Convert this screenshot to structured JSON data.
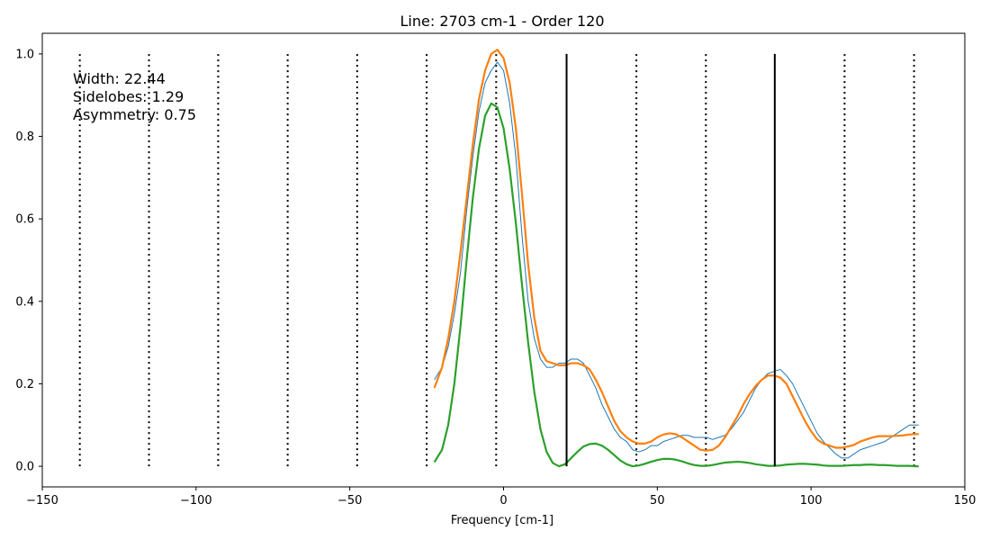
{
  "chart_data": {
    "type": "line",
    "title": "Line: 2703 cm-1 - Order 120",
    "xlabel": "Frequency [cm-1]",
    "ylabel": "",
    "xlim": [
      -150,
      150
    ],
    "ylim": [
      -0.05,
      1.05
    ],
    "xticks": [
      -150,
      -100,
      -50,
      0,
      50,
      100,
      150
    ],
    "xtick_labels": [
      "−150",
      "−100",
      "−50",
      "0",
      "50",
      "100",
      "150"
    ],
    "yticks": [
      0.0,
      0.2,
      0.4,
      0.6,
      0.8,
      1.0
    ],
    "ytick_labels": [
      "0.0",
      "0.2",
      "0.4",
      "0.6",
      "0.8",
      "1.0"
    ],
    "grid": false,
    "annotations": [
      "Width: 22.44",
      "Sidelobes: 1.29",
      "Asymmetry: 0.75"
    ],
    "dotted_vlines": {
      "x": [
        -137.8,
        -115.3,
        -92.8,
        -70.2,
        -47.6,
        -25.0,
        -2.4,
        43.2,
        65.8,
        110.9,
        133.5
      ],
      "ymin": 0.0,
      "ymax": 1.0,
      "color": "#000000"
    },
    "solid_vlines": {
      "x": [
        20.5,
        88.2
      ],
      "ymin": 0.0,
      "ymax": 1.0,
      "color": "#000000"
    },
    "series": [
      {
        "color": "#1f77b4",
        "x": [
          -22.5,
          -20,
          -18,
          -16,
          -14,
          -12,
          -10,
          -8,
          -6,
          -4,
          -2,
          0,
          2,
          4,
          6,
          8,
          10,
          12,
          14,
          16,
          18,
          20,
          22,
          24,
          26,
          28,
          30,
          32,
          34,
          36,
          38,
          40,
          42,
          44,
          46,
          48,
          50,
          52,
          54,
          56,
          58,
          60,
          62,
          64,
          66,
          68,
          70,
          72,
          74,
          76,
          78,
          80,
          82,
          84,
          86,
          88,
          90,
          92,
          94,
          96,
          98,
          100,
          102,
          104,
          106,
          108,
          110,
          112,
          114,
          116,
          118,
          120,
          122,
          124,
          126,
          128,
          130,
          132,
          134,
          135
        ],
        "y": [
          0.21,
          0.24,
          0.29,
          0.37,
          0.47,
          0.62,
          0.75,
          0.86,
          0.93,
          0.96,
          0.98,
          0.96,
          0.88,
          0.75,
          0.56,
          0.4,
          0.31,
          0.26,
          0.24,
          0.24,
          0.25,
          0.25,
          0.26,
          0.26,
          0.25,
          0.22,
          0.19,
          0.15,
          0.12,
          0.09,
          0.07,
          0.06,
          0.04,
          0.035,
          0.04,
          0.05,
          0.05,
          0.06,
          0.065,
          0.07,
          0.075,
          0.075,
          0.07,
          0.07,
          0.07,
          0.065,
          0.07,
          0.075,
          0.09,
          0.11,
          0.13,
          0.16,
          0.19,
          0.21,
          0.225,
          0.23,
          0.235,
          0.22,
          0.2,
          0.17,
          0.14,
          0.11,
          0.08,
          0.06,
          0.045,
          0.03,
          0.02,
          0.02,
          0.03,
          0.04,
          0.045,
          0.05,
          0.055,
          0.06,
          0.07,
          0.08,
          0.09,
          0.1,
          0.1,
          0.1
        ]
      },
      {
        "color": "#ff7f0e",
        "x": [
          -22.5,
          -20,
          -18,
          -16,
          -14,
          -12,
          -10,
          -8,
          -6,
          -4,
          -2,
          0,
          2,
          4,
          6,
          8,
          10,
          12,
          14,
          16,
          18,
          20,
          22,
          24,
          26,
          28,
          30,
          32,
          34,
          36,
          38,
          40,
          42,
          44,
          46,
          48,
          50,
          52,
          54,
          56,
          58,
          60,
          62,
          64,
          66,
          68,
          70,
          72,
          74,
          76,
          78,
          80,
          82,
          84,
          86,
          88,
          90,
          92,
          94,
          96,
          98,
          100,
          102,
          104,
          106,
          108,
          110,
          112,
          114,
          116,
          118,
          120,
          122,
          124,
          126,
          128,
          130,
          132,
          134,
          135
        ],
        "y": [
          0.19,
          0.24,
          0.31,
          0.4,
          0.52,
          0.65,
          0.78,
          0.89,
          0.96,
          1.0,
          1.01,
          0.99,
          0.93,
          0.82,
          0.66,
          0.49,
          0.36,
          0.28,
          0.255,
          0.25,
          0.245,
          0.245,
          0.25,
          0.25,
          0.245,
          0.235,
          0.21,
          0.18,
          0.145,
          0.11,
          0.085,
          0.07,
          0.06,
          0.055,
          0.055,
          0.06,
          0.07,
          0.077,
          0.08,
          0.078,
          0.07,
          0.06,
          0.05,
          0.04,
          0.038,
          0.04,
          0.05,
          0.07,
          0.095,
          0.12,
          0.15,
          0.175,
          0.195,
          0.21,
          0.22,
          0.22,
          0.215,
          0.2,
          0.17,
          0.14,
          0.11,
          0.085,
          0.065,
          0.055,
          0.05,
          0.045,
          0.045,
          0.048,
          0.052,
          0.06,
          0.065,
          0.07,
          0.073,
          0.073,
          0.073,
          0.074,
          0.075,
          0.077,
          0.078,
          0.078
        ]
      },
      {
        "color": "#2ca02c",
        "x": [
          -22.5,
          -20,
          -18,
          -16,
          -14,
          -12,
          -10,
          -8,
          -6,
          -4,
          -2,
          0,
          2,
          4,
          6,
          8,
          10,
          12,
          14,
          16,
          18,
          20,
          22,
          24,
          26,
          28,
          30,
          32,
          34,
          36,
          38,
          40,
          42,
          44,
          46,
          48,
          50,
          52,
          54,
          56,
          58,
          60,
          62,
          64,
          66,
          68,
          70,
          72,
          74,
          76,
          78,
          80,
          82,
          84,
          86,
          88,
          90,
          92,
          94,
          96,
          98,
          100,
          102,
          104,
          106,
          108,
          110,
          112,
          114,
          116,
          118,
          120,
          122,
          124,
          126,
          128,
          130,
          132,
          134,
          135
        ],
        "y": [
          0.01,
          0.04,
          0.1,
          0.2,
          0.34,
          0.5,
          0.65,
          0.77,
          0.85,
          0.88,
          0.87,
          0.82,
          0.72,
          0.59,
          0.44,
          0.3,
          0.18,
          0.09,
          0.035,
          0.008,
          0.0,
          0.005,
          0.02,
          0.035,
          0.048,
          0.054,
          0.055,
          0.05,
          0.04,
          0.027,
          0.014,
          0.005,
          0.0,
          0.002,
          0.006,
          0.011,
          0.015,
          0.018,
          0.018,
          0.016,
          0.012,
          0.007,
          0.003,
          0.001,
          0.001,
          0.003,
          0.006,
          0.009,
          0.01,
          0.011,
          0.01,
          0.008,
          0.005,
          0.003,
          0.001,
          0.001,
          0.002,
          0.004,
          0.005,
          0.006,
          0.006,
          0.005,
          0.004,
          0.002,
          0.001,
          0.001,
          0.001,
          0.002,
          0.003,
          0.003,
          0.004,
          0.004,
          0.003,
          0.003,
          0.002,
          0.001,
          0.001,
          0.001,
          0.0,
          0.0
        ]
      }
    ]
  }
}
